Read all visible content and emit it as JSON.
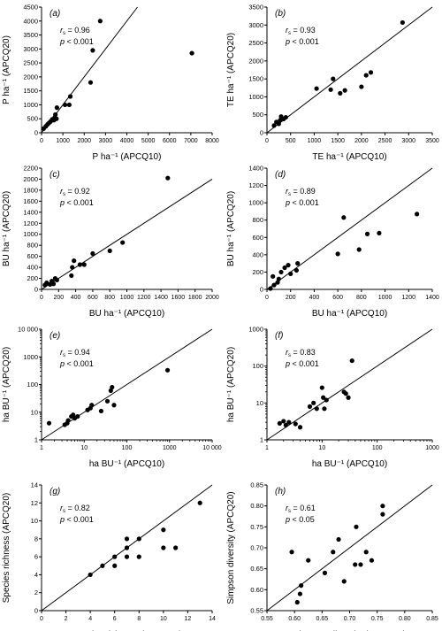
{
  "chart_data": [
    {
      "type": "scatter",
      "panel_label": "(a)",
      "stat_r": "rs = 0.96",
      "stat_r_sym": "r",
      "stat_r_sub": "s",
      "stat_r_val": " = 0.96",
      "stat_p": "p < 0.001",
      "stat_p_sym": "p",
      "stat_p_val": " < 0.001",
      "xlabel": "P ha⁻¹ (APCQ10)",
      "ylabel": "P ha⁻¹ (APCQ20)",
      "xscale": "linear",
      "yscale": "linear",
      "xlim": [
        0,
        8000
      ],
      "ylim": [
        0,
        4500
      ],
      "xticks": [
        0,
        1000,
        2000,
        3000,
        4000,
        5000,
        6000,
        7000,
        8000
      ],
      "xtick_labels": [
        "0",
        "1000",
        "2000",
        "3000",
        "4000",
        "5000",
        "6000",
        "7000",
        "8000"
      ],
      "yticks": [
        0,
        500,
        1000,
        1500,
        2000,
        2500,
        3000,
        3500,
        4000,
        4500
      ],
      "ytick_labels": [
        "0",
        "500",
        "1000",
        "1500",
        "2000",
        "2500",
        "3000",
        "3500",
        "4000",
        "4500"
      ],
      "identity_line": true,
      "x": [
        100,
        200,
        280,
        350,
        420,
        500,
        580,
        620,
        650,
        700,
        720,
        1100,
        1300,
        1350,
        2300,
        2400,
        2750,
        7050
      ],
      "y": [
        150,
        230,
        300,
        350,
        400,
        480,
        450,
        550,
        650,
        500,
        900,
        1000,
        1000,
        1300,
        1800,
        2950,
        4000,
        2850
      ]
    },
    {
      "type": "scatter",
      "panel_label": "(b)",
      "stat_r": "rs = 0.93",
      "stat_r_sym": "r",
      "stat_r_sub": "s",
      "stat_r_val": " = 0.93",
      "stat_p": "p < 0.001",
      "stat_p_sym": "p",
      "stat_p_val": " < 0.001",
      "xlabel": "TE ha⁻¹ (APCQ10)",
      "ylabel": "TE ha⁻¹ (APCQ20)",
      "xscale": "linear",
      "yscale": "linear",
      "xlim": [
        0,
        3500
      ],
      "ylim": [
        0,
        3500
      ],
      "xticks": [
        0,
        500,
        1000,
        1500,
        2000,
        2500,
        3000,
        3500
      ],
      "xtick_labels": [
        "0",
        "500",
        "1000",
        "1500",
        "2000",
        "2500",
        "3000",
        "3500"
      ],
      "yticks": [
        0,
        500,
        1000,
        1500,
        2000,
        2500,
        3000,
        3500
      ],
      "ytick_labels": [
        "0",
        "500",
        "1000",
        "1500",
        "2000",
        "2500",
        "3000",
        "3500"
      ],
      "identity_line": true,
      "x": [
        150,
        200,
        250,
        280,
        300,
        350,
        400,
        1050,
        1350,
        1400,
        1550,
        1650,
        2000,
        2100,
        2200,
        2870
      ],
      "y": [
        200,
        300,
        250,
        350,
        450,
        380,
        430,
        1230,
        1200,
        1500,
        1100,
        1180,
        1280,
        1600,
        1680,
        3070
      ]
    },
    {
      "type": "scatter",
      "panel_label": "(c)",
      "stat_r": "rs = 0.92",
      "stat_r_sym": "r",
      "stat_r_sub": "s",
      "stat_r_val": " = 0.92",
      "stat_p": "p < 0.001",
      "stat_p_sym": "p",
      "stat_p_val": " < 0.001",
      "xlabel": "BU ha⁻¹ (APCQ10)",
      "ylabel": "BU ha⁻¹ (APCQ20)",
      "xscale": "linear",
      "yscale": "linear",
      "xlim": [
        0,
        2000
      ],
      "ylim": [
        0,
        2200
      ],
      "xticks": [
        0,
        200,
        400,
        600,
        800,
        1000,
        1200,
        1400,
        1600,
        1800,
        2000
      ],
      "xtick_labels": [
        "0",
        "200",
        "400",
        "600",
        "800",
        "1000",
        "1200",
        "1400",
        "1600",
        "1800",
        "2000"
      ],
      "yticks": [
        0,
        200,
        400,
        600,
        800,
        1000,
        1200,
        1400,
        1600,
        1800,
        2000,
        2200
      ],
      "ytick_labels": [
        "0",
        "200",
        "400",
        "600",
        "800",
        "1000",
        "1200",
        "1400",
        "1600",
        "1800",
        "2000",
        "2200"
      ],
      "identity_line": true,
      "x": [
        40,
        60,
        100,
        120,
        140,
        160,
        180,
        350,
        360,
        380,
        450,
        500,
        600,
        800,
        950,
        1480
      ],
      "y": [
        80,
        120,
        90,
        150,
        100,
        200,
        170,
        250,
        400,
        520,
        450,
        450,
        650,
        700,
        850,
        2020
      ]
    },
    {
      "type": "scatter",
      "panel_label": "(d)",
      "stat_r": "rs = 0.89",
      "stat_r_sym": "r",
      "stat_r_sub": "s",
      "stat_r_val": " = 0.89",
      "stat_p": "p < 0.001",
      "stat_p_sym": "p",
      "stat_p_val": " < 0.001",
      "xlabel": "BU ha⁻¹ (APCQ10)",
      "ylabel": "BU ha⁻¹ (APCQ20)",
      "xscale": "linear",
      "yscale": "linear",
      "xlim": [
        0,
        1400
      ],
      "ylim": [
        0,
        1400
      ],
      "xticks": [
        0,
        200,
        400,
        600,
        800,
        1000,
        1200,
        1400
      ],
      "xtick_labels": [
        "0",
        "200",
        "400",
        "600",
        "800",
        "1000",
        "1200",
        "1400"
      ],
      "yticks": [
        0,
        200,
        400,
        600,
        800,
        1000,
        1200,
        1400
      ],
      "ytick_labels": [
        "0",
        "200",
        "400",
        "600",
        "800",
        "1000",
        "1200",
        "1400"
      ],
      "identity_line": true,
      "x": [
        30,
        50,
        60,
        90,
        100,
        120,
        150,
        180,
        200,
        250,
        260,
        600,
        650,
        780,
        850,
        950,
        1270
      ],
      "y": [
        10,
        150,
        50,
        80,
        120,
        200,
        250,
        280,
        180,
        220,
        300,
        410,
        830,
        460,
        640,
        650,
        870
      ]
    },
    {
      "type": "scatter",
      "panel_label": "(e)",
      "stat_r": "rs = 0.94",
      "stat_r_sym": "r",
      "stat_r_sub": "s",
      "stat_r_val": " = 0.94",
      "stat_p": "p < 0.001",
      "stat_p_sym": "p",
      "stat_p_val": " < 0.001",
      "xlabel": "ha BU⁻¹ (APCQ10)",
      "ylabel": "ha BU⁻¹ (APCQ20)",
      "xscale": "log",
      "yscale": "log",
      "xlim": [
        1,
        10000
      ],
      "ylim": [
        1,
        10000
      ],
      "xticks": [
        1,
        10,
        100,
        1000,
        10000
      ],
      "xtick_labels": [
        "1",
        "10",
        "100",
        "1000",
        "10 000"
      ],
      "yticks": [
        1,
        10,
        100,
        1000,
        10000
      ],
      "ytick_labels": [
        "1",
        "10",
        "100",
        "1000",
        "10 000"
      ],
      "identity_line": true,
      "x": [
        1.5,
        3.5,
        4,
        4.2,
        5,
        5.5,
        6,
        7,
        12,
        14,
        15,
        25,
        35,
        42,
        45,
        50,
        900
      ],
      "y": [
        4,
        3.5,
        4,
        5,
        7,
        8,
        6,
        7,
        12,
        14,
        18,
        11,
        25,
        60,
        80,
        18,
        330
      ]
    },
    {
      "type": "scatter",
      "panel_label": "(f)",
      "stat_r": "rs = 0.83",
      "stat_r_sym": "r",
      "stat_r_sub": "s",
      "stat_r_val": " = 0.83",
      "stat_p": "p < 0.001",
      "stat_p_sym": "p",
      "stat_p_val": " < 0.001",
      "xlabel": "ha BU⁻¹ (APCQ10)",
      "ylabel": "ha BU⁻¹ (APCQ20)",
      "xscale": "log",
      "yscale": "log",
      "xlim": [
        1,
        1000
      ],
      "ylim": [
        1,
        1000
      ],
      "xticks": [
        1,
        10,
        100,
        1000
      ],
      "xtick_labels": [
        "1",
        "10",
        "100",
        "1000"
      ],
      "yticks": [
        1,
        10,
        100,
        1000
      ],
      "ytick_labels": [
        "1",
        "10",
        "100",
        "1000"
      ],
      "identity_line": true,
      "x": [
        1.7,
        2,
        2.2,
        2.5,
        3.3,
        4,
        6,
        7,
        8,
        10,
        10.5,
        11,
        12,
        25,
        27,
        30,
        35
      ],
      "y": [
        2.8,
        3.2,
        2.5,
        3,
        2.7,
        2.2,
        8,
        10,
        7,
        26,
        14,
        7,
        12,
        20,
        18,
        14,
        140
      ]
    },
    {
      "type": "scatter",
      "panel_label": "(g)",
      "stat_r": "rs = 0.82",
      "stat_r_sym": "r",
      "stat_r_sub": "s",
      "stat_r_val": " = 0.82",
      "stat_p": "p < 0.001",
      "stat_p_sym": "p",
      "stat_p_val": " < 0.001",
      "xlabel": "Species richness (APCQ10)",
      "ylabel": "Species richness (APCQ20)",
      "xscale": "linear",
      "yscale": "linear",
      "xlim": [
        0,
        14
      ],
      "ylim": [
        0,
        14
      ],
      "xticks": [
        0,
        2,
        4,
        6,
        8,
        10,
        12,
        14
      ],
      "xtick_labels": [
        "0",
        "2",
        "4",
        "6",
        "8",
        "10",
        "12",
        "14"
      ],
      "yticks": [
        0,
        2,
        4,
        6,
        8,
        10,
        12,
        14
      ],
      "ytick_labels": [
        "0",
        "2",
        "4",
        "6",
        "8",
        "10",
        "12",
        "14"
      ],
      "identity_line": true,
      "x": [
        4,
        5,
        6,
        6,
        7,
        7,
        7,
        8,
        8,
        10,
        10,
        11,
        13
      ],
      "y": [
        4,
        5,
        5,
        6,
        6,
        7,
        8,
        6,
        8,
        7,
        9,
        7,
        12
      ]
    },
    {
      "type": "scatter",
      "panel_label": "(h)",
      "stat_r": "rs = 0.61",
      "stat_r_sym": "r",
      "stat_r_sub": "s",
      "stat_r_val": " = 0.61",
      "stat_p": "p < 0.05",
      "stat_p_sym": "p",
      "stat_p_val": " < 0.05",
      "xlabel": "Simpson diversity (APCQ10)",
      "ylabel": "Simpson diversity (APCQ20)",
      "xscale": "linear",
      "yscale": "linear",
      "xlim": [
        0.55,
        0.85
      ],
      "ylim": [
        0.55,
        0.85
      ],
      "xticks": [
        0.55,
        0.6,
        0.65,
        0.7,
        0.75,
        0.8,
        0.85
      ],
      "xtick_labels": [
        "0.55",
        "0.60",
        "0.65",
        "0.70",
        "0.75",
        "0.80",
        "0.85"
      ],
      "yticks": [
        0.55,
        0.6,
        0.65,
        0.7,
        0.75,
        0.8,
        0.85
      ],
      "ytick_labels": [
        "0.55",
        "0.60",
        "0.65",
        "0.70",
        "0.75",
        "0.80",
        "0.85"
      ],
      "identity_line": true,
      "x": [
        0.595,
        0.605,
        0.61,
        0.612,
        0.625,
        0.655,
        0.67,
        0.68,
        0.69,
        0.71,
        0.712,
        0.72,
        0.73,
        0.74,
        0.76,
        0.76
      ],
      "y": [
        0.69,
        0.57,
        0.59,
        0.61,
        0.67,
        0.64,
        0.69,
        0.72,
        0.62,
        0.66,
        0.75,
        0.66,
        0.69,
        0.67,
        0.78,
        0.8
      ]
    }
  ]
}
